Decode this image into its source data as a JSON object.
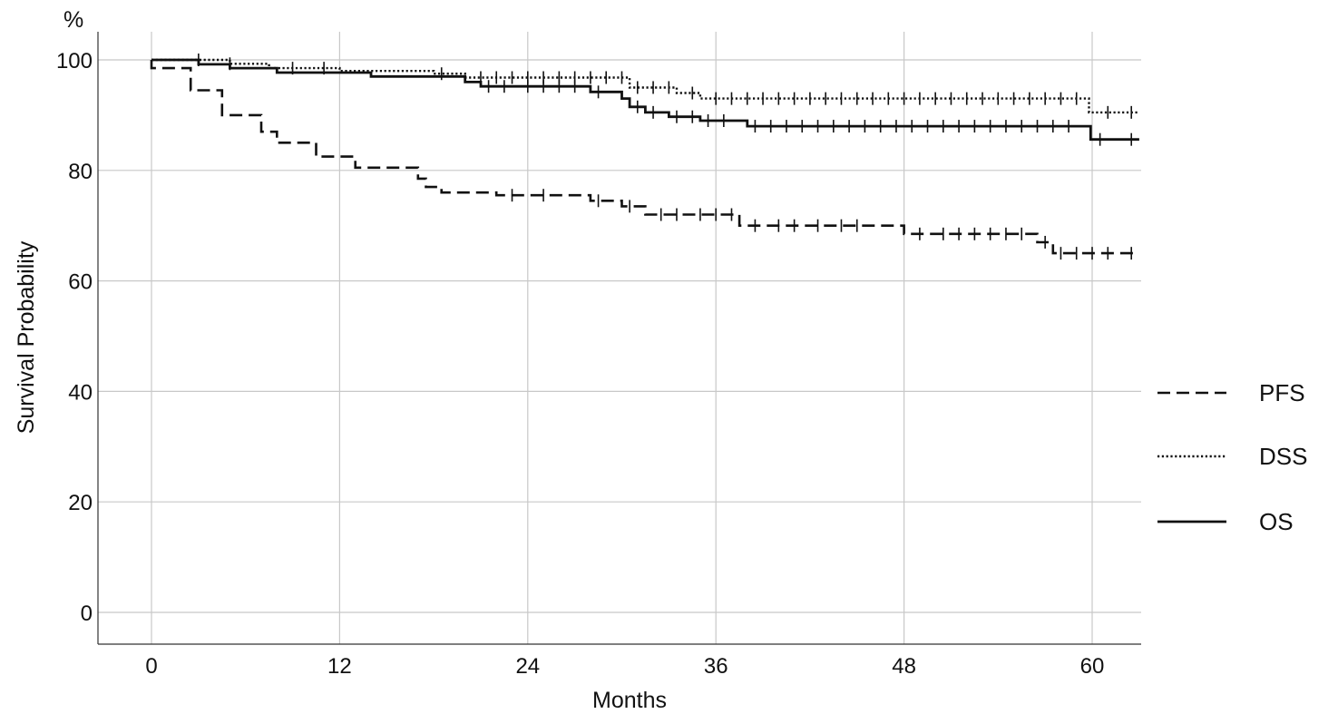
{
  "chart_data": {
    "type": "line",
    "subtype": "kaplan-meier step curve",
    "title": "",
    "xlabel": "Months",
    "ylabel": "Survival Probability",
    "y_unit_label": "%",
    "xlim": [
      -5.5,
      63
    ],
    "ylim": [
      -5.5,
      105
    ],
    "x_ticks": [
      0,
      12,
      24,
      36,
      48,
      60
    ],
    "y_ticks": [
      0,
      20,
      40,
      60,
      80,
      100
    ],
    "grid": true,
    "legend_position": "right",
    "series": [
      {
        "name": "PFS",
        "line_style": "dashed",
        "steps": [
          [
            0,
            100
          ],
          [
            0,
            98.5
          ],
          [
            2.5,
            98.5
          ],
          [
            2.5,
            94.5
          ],
          [
            4.5,
            94.5
          ],
          [
            4.5,
            90
          ],
          [
            7,
            90
          ],
          [
            7,
            87
          ],
          [
            8,
            87
          ],
          [
            8,
            85
          ],
          [
            10.5,
            85
          ],
          [
            10.5,
            82.5
          ],
          [
            13,
            82.5
          ],
          [
            13,
            80.5
          ],
          [
            17,
            80.5
          ],
          [
            17,
            78.5
          ],
          [
            17.5,
            78.5
          ],
          [
            17.5,
            77
          ],
          [
            18.5,
            77
          ],
          [
            18.5,
            76
          ],
          [
            22,
            76
          ],
          [
            22,
            75.5
          ],
          [
            28,
            75.5
          ],
          [
            28,
            74.5
          ],
          [
            30,
            74.5
          ],
          [
            30,
            73.5
          ],
          [
            31.5,
            73.5
          ],
          [
            31.5,
            72
          ],
          [
            37.5,
            72
          ],
          [
            37.5,
            70
          ],
          [
            48,
            70
          ],
          [
            48,
            68.5
          ],
          [
            56.5,
            68.5
          ],
          [
            56.5,
            67
          ],
          [
            57.5,
            67
          ],
          [
            57.5,
            65
          ],
          [
            63,
            65
          ]
        ],
        "censored": [
          [
            23,
            75.5
          ],
          [
            25,
            75.5
          ],
          [
            28.5,
            74.5
          ],
          [
            30.5,
            73.5
          ],
          [
            32.5,
            72
          ],
          [
            33.5,
            72
          ],
          [
            35,
            72
          ],
          [
            36,
            72
          ],
          [
            37,
            72
          ],
          [
            38.5,
            70
          ],
          [
            40,
            70
          ],
          [
            41,
            70
          ],
          [
            42.5,
            70
          ],
          [
            44,
            70
          ],
          [
            45,
            70
          ],
          [
            49,
            68.5
          ],
          [
            50.5,
            68.5
          ],
          [
            51.5,
            68.5
          ],
          [
            52.5,
            68.5
          ],
          [
            53.5,
            68.5
          ],
          [
            54.5,
            68.5
          ],
          [
            55.5,
            68.5
          ],
          [
            57,
            67
          ],
          [
            58,
            65
          ],
          [
            59,
            65
          ],
          [
            60,
            65
          ],
          [
            61,
            65
          ],
          [
            62.5,
            65
          ]
        ]
      },
      {
        "name": "DSS",
        "line_style": "dotted",
        "steps": [
          [
            0,
            100
          ],
          [
            5,
            100
          ],
          [
            5,
            99.3
          ],
          [
            7.5,
            99.3
          ],
          [
            7.5,
            98.5
          ],
          [
            12,
            98.5
          ],
          [
            12,
            98
          ],
          [
            18,
            98
          ],
          [
            18,
            97.5
          ],
          [
            20,
            97.5
          ],
          [
            20,
            96.8
          ],
          [
            30.5,
            96.8
          ],
          [
            30.5,
            95
          ],
          [
            33.5,
            95
          ],
          [
            33.5,
            94
          ],
          [
            35,
            94
          ],
          [
            35,
            93
          ],
          [
            59.8,
            93
          ],
          [
            59.8,
            90.5
          ],
          [
            63,
            90.5
          ]
        ],
        "censored": [
          [
            3,
            100
          ],
          [
            5,
            99.3
          ],
          [
            9,
            98.5
          ],
          [
            11,
            98.5
          ],
          [
            18.5,
            97.5
          ],
          [
            21,
            96.8
          ],
          [
            22,
            96.8
          ],
          [
            23,
            96.8
          ],
          [
            24,
            96.8
          ],
          [
            25,
            96.8
          ],
          [
            26,
            96.8
          ],
          [
            27,
            96.8
          ],
          [
            28,
            96.8
          ],
          [
            29,
            96.8
          ],
          [
            30,
            96.8
          ],
          [
            31,
            95
          ],
          [
            32,
            95
          ],
          [
            33,
            95
          ],
          [
            34.5,
            94
          ],
          [
            36,
            93
          ],
          [
            37,
            93
          ],
          [
            38,
            93
          ],
          [
            39,
            93
          ],
          [
            40,
            93
          ],
          [
            41,
            93
          ],
          [
            42,
            93
          ],
          [
            43,
            93
          ],
          [
            44,
            93
          ],
          [
            45,
            93
          ],
          [
            46,
            93
          ],
          [
            47,
            93
          ],
          [
            48,
            93
          ],
          [
            49,
            93
          ],
          [
            50,
            93
          ],
          [
            51,
            93
          ],
          [
            52,
            93
          ],
          [
            53,
            93
          ],
          [
            54,
            93
          ],
          [
            55,
            93
          ],
          [
            56,
            93
          ],
          [
            57,
            93
          ],
          [
            58,
            93
          ],
          [
            59,
            93
          ],
          [
            61,
            90.5
          ],
          [
            62.5,
            90.5
          ]
        ]
      },
      {
        "name": "OS",
        "line_style": "solid",
        "steps": [
          [
            0,
            100
          ],
          [
            3,
            100
          ],
          [
            3,
            99.2
          ],
          [
            5,
            99.2
          ],
          [
            5,
            98.5
          ],
          [
            8,
            98.5
          ],
          [
            8,
            97.7
          ],
          [
            14,
            97.7
          ],
          [
            14,
            97
          ],
          [
            20,
            97
          ],
          [
            20,
            96
          ],
          [
            21,
            96
          ],
          [
            21,
            95.2
          ],
          [
            28,
            95.2
          ],
          [
            28,
            94.2
          ],
          [
            30,
            94.2
          ],
          [
            30,
            93
          ],
          [
            30.5,
            93
          ],
          [
            30.5,
            91.5
          ],
          [
            31.5,
            91.5
          ],
          [
            31.5,
            90.5
          ],
          [
            33,
            90.5
          ],
          [
            33,
            89.7
          ],
          [
            35,
            89.7
          ],
          [
            35,
            89
          ],
          [
            38,
            89
          ],
          [
            38,
            88
          ],
          [
            59.9,
            88
          ],
          [
            59.9,
            85.6
          ],
          [
            63,
            85.6
          ]
        ],
        "censored": [
          [
            21.5,
            95.2
          ],
          [
            22.5,
            95.2
          ],
          [
            24,
            95.2
          ],
          [
            25,
            95.2
          ],
          [
            26,
            95.2
          ],
          [
            27,
            95.2
          ],
          [
            28.5,
            94.2
          ],
          [
            31,
            91.5
          ],
          [
            32,
            90.5
          ],
          [
            33.5,
            89.7
          ],
          [
            34.5,
            89.7
          ],
          [
            35.5,
            89
          ],
          [
            36.5,
            89
          ],
          [
            38.5,
            88
          ],
          [
            39.5,
            88
          ],
          [
            40.5,
            88
          ],
          [
            41.5,
            88
          ],
          [
            42.5,
            88
          ],
          [
            43.5,
            88
          ],
          [
            44.5,
            88
          ],
          [
            45.5,
            88
          ],
          [
            46.5,
            88
          ],
          [
            47.5,
            88
          ],
          [
            48.5,
            88
          ],
          [
            49.5,
            88
          ],
          [
            50.5,
            88
          ],
          [
            51.5,
            88
          ],
          [
            52.5,
            88
          ],
          [
            53.5,
            88
          ],
          [
            54.5,
            88
          ],
          [
            55.5,
            88
          ],
          [
            56.5,
            88
          ],
          [
            57.5,
            88
          ],
          [
            58.5,
            88
          ],
          [
            60.5,
            85.6
          ],
          [
            62.5,
            85.6
          ]
        ]
      }
    ]
  }
}
